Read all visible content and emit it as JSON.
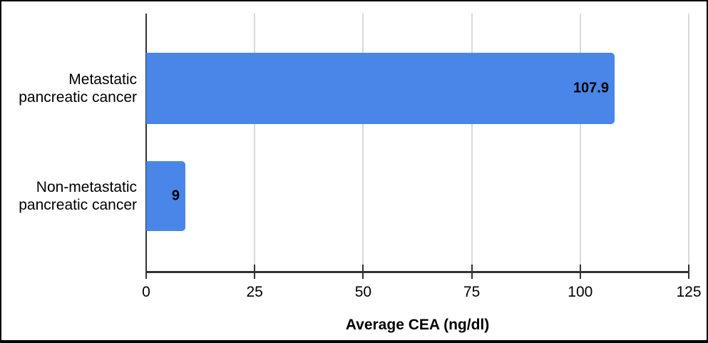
{
  "chart_data": {
    "type": "bar",
    "orientation": "horizontal",
    "title": "",
    "xlabel": "Average CEA (ng/dl)",
    "ylabel": "",
    "categories": [
      "Metastatic\npancreatic cancer",
      "Non-metastatic\npancreatic cancer"
    ],
    "values": [
      107.9,
      9
    ],
    "value_labels": [
      "107.9",
      "9"
    ],
    "x_ticks": [
      0,
      25,
      50,
      75,
      100,
      125
    ],
    "x_tick_labels": [
      "0",
      "25",
      "50",
      "75",
      "100",
      "125"
    ],
    "xlim": [
      0,
      125
    ],
    "grid": true,
    "legend": false,
    "colors": {
      "bar": "#4a86e8",
      "gridline": "#d9d9d9",
      "axis": "#333333",
      "text": "#000000",
      "frame_border": "#000000",
      "background": "#ffffff"
    }
  }
}
